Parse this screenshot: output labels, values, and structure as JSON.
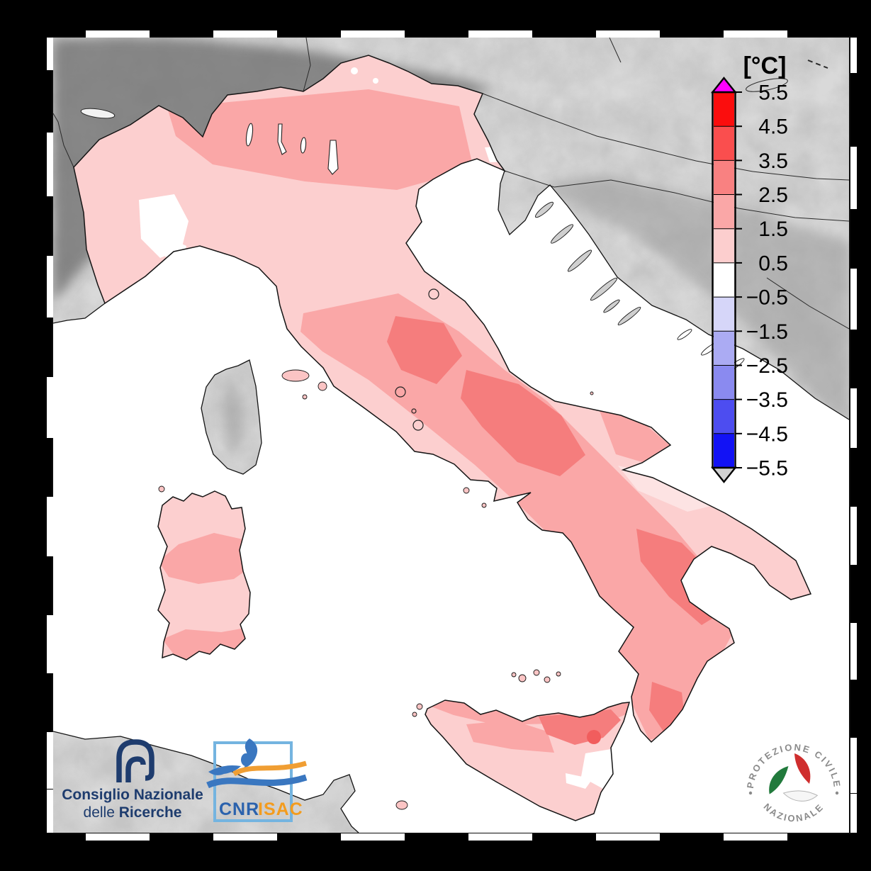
{
  "page": {
    "background": "#000000"
  },
  "map": {
    "sea_color": "#ffffff",
    "land_color": "#d9d9d9",
    "coast_color": "#141414",
    "italy_base_color": "#fccfcf"
  },
  "colorbar": {
    "title": "[°C]",
    "ticks": [
      "5.5",
      "4.5",
      "3.5",
      "2.5",
      "1.5",
      "0.5",
      "−0.5",
      "−1.5",
      "−2.5",
      "−3.5",
      "−4.5",
      "−5.5"
    ],
    "segments": [
      {
        "label": "4.5 to 5.5",
        "color": "#fb0d0d"
      },
      {
        "label": "3.5 to 4.5",
        "color": "#fa4e4e"
      },
      {
        "label": "2.5 to 3.5",
        "color": "#f98181"
      },
      {
        "label": "1.5 to 2.5",
        "color": "#faa7a7"
      },
      {
        "label": "0.5 to 1.5",
        "color": "#fccece"
      },
      {
        "label": "-0.5 to 0.5",
        "color": "#ffffff"
      },
      {
        "label": "-1.5 to -0.5",
        "color": "#d6d6f9"
      },
      {
        "label": "-2.5 to -1.5",
        "color": "#ababf3"
      },
      {
        "label": "-3.5 to -2.5",
        "color": "#8a8af0"
      },
      {
        "label": "-4.5 to -3.5",
        "color": "#4d4df0"
      },
      {
        "label": "-5.5 to -4.5",
        "color": "#1212f5"
      }
    ],
    "over_arrow_color": "#ff00ff",
    "under_arrow_color": "#d2d2d2"
  },
  "logos": {
    "cnr": {
      "line1": "Consiglio Nazionale",
      "line2_regular": "delle ",
      "line2_bold": "Ricerche",
      "color": "#1e3c6e"
    },
    "isac": {
      "cnr_label": "CNR",
      "isac_label": "ISAC",
      "cnr_color": "#2b62ad",
      "isac_color": "#f39c1f",
      "box_color": "#74b4e0"
    },
    "protezione_civile": {
      "arc_top": "PROTEZIONE CIVILE",
      "arc_bottom": "NAZIONALE",
      "text_color": "#8a8a8a"
    }
  }
}
